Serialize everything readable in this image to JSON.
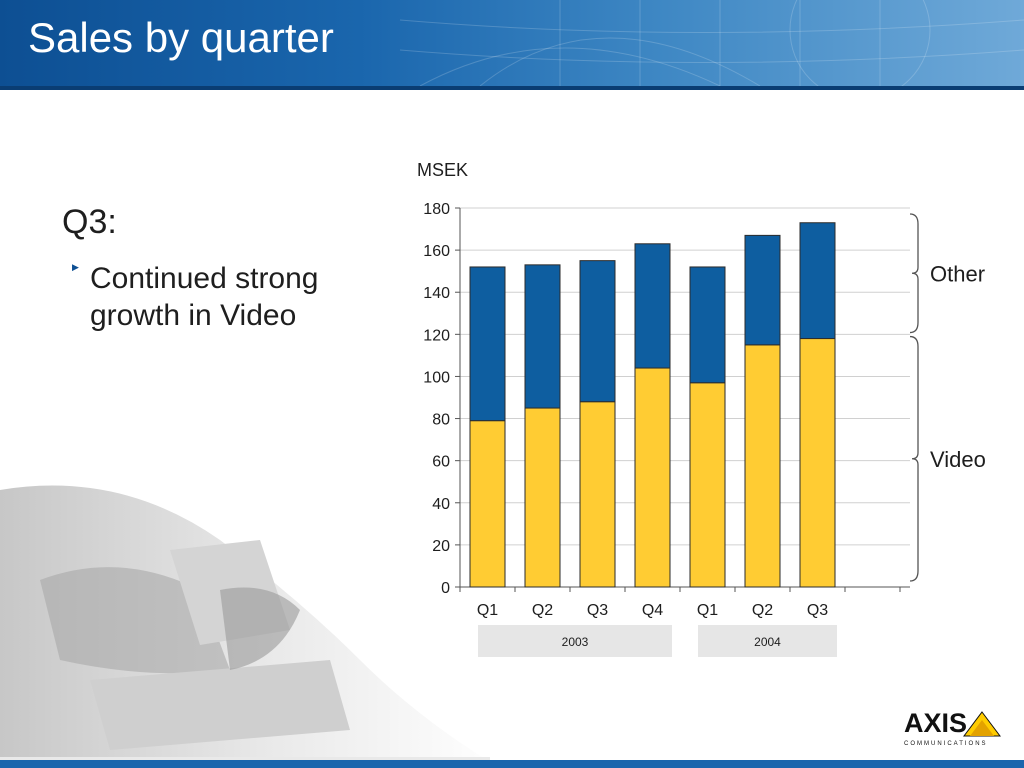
{
  "slide": {
    "title": "Sales by quarter",
    "heading": "Q3:",
    "bullet": "Continued strong growth in Video",
    "brand": "AXIS",
    "brand_sub": "COMMUNICATIONS"
  },
  "colors": {
    "header": "#1a66ad",
    "video": "#ffcc33",
    "other": "#0e5ea0"
  },
  "chart_data": {
    "type": "bar",
    "stacked": true,
    "ylabel": "MSEK",
    "ylim": [
      0,
      180
    ],
    "yticks": [
      0,
      20,
      40,
      60,
      80,
      100,
      120,
      140,
      160,
      180
    ],
    "categories": [
      "Q1",
      "Q2",
      "Q3",
      "Q4",
      "Q1",
      "Q2",
      "Q3"
    ],
    "groups": [
      {
        "label": "2003",
        "span": [
          0,
          3
        ]
      },
      {
        "label": "2004",
        "span": [
          4,
          6
        ]
      }
    ],
    "series": [
      {
        "name": "Video",
        "color": "#ffcc33",
        "values": [
          79,
          85,
          88,
          104,
          97,
          115,
          118
        ]
      },
      {
        "name": "Other",
        "color": "#0e5ea0",
        "values": [
          73,
          68,
          67,
          59,
          55,
          52,
          55
        ]
      }
    ],
    "grid": true
  }
}
